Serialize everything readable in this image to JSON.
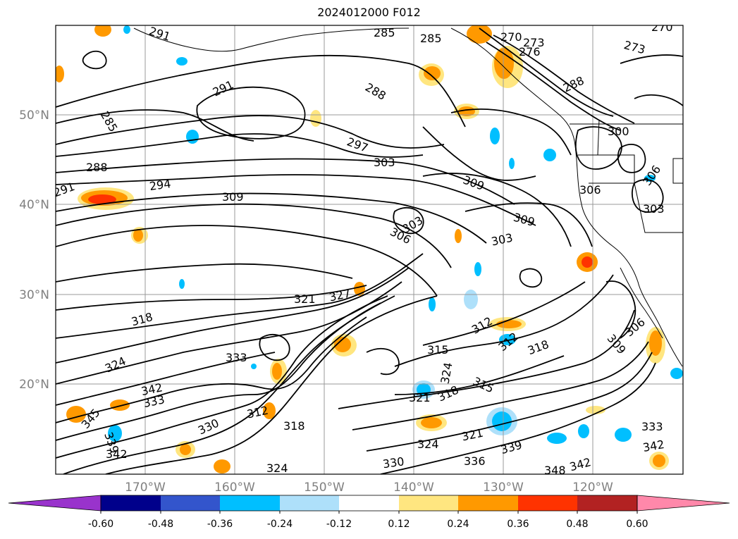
{
  "title": "2024012000 F012",
  "map": {
    "lat_labels": [
      "50°N",
      "40°N",
      "30°N",
      "20°N"
    ],
    "lon_labels": [
      "170°W",
      "160°W",
      "150°W",
      "140°W",
      "130°W",
      "120°W"
    ],
    "contour_labels": [
      {
        "text": "291"
      },
      {
        "text": "285"
      },
      {
        "text": "285"
      },
      {
        "text": "270"
      },
      {
        "text": "273"
      },
      {
        "text": "276"
      },
      {
        "text": "270"
      },
      {
        "text": "273"
      },
      {
        "text": "291"
      },
      {
        "text": "288"
      },
      {
        "text": "285"
      },
      {
        "text": "288"
      },
      {
        "text": "297"
      },
      {
        "text": "303"
      },
      {
        "text": "300"
      },
      {
        "text": "288"
      },
      {
        "text": "294"
      },
      {
        "text": "291"
      },
      {
        "text": "309"
      },
      {
        "text": "309"
      },
      {
        "text": "306"
      },
      {
        "text": "306"
      },
      {
        "text": "303"
      },
      {
        "text": "306"
      },
      {
        "text": "309"
      },
      {
        "text": "303"
      },
      {
        "text": "303"
      },
      {
        "text": "321"
      },
      {
        "text": "327"
      },
      {
        "text": "318"
      },
      {
        "text": "312"
      },
      {
        "text": "312"
      },
      {
        "text": "318"
      },
      {
        "text": "306"
      },
      {
        "text": "309"
      },
      {
        "text": "324"
      },
      {
        "text": "333"
      },
      {
        "text": "315"
      },
      {
        "text": "324"
      },
      {
        "text": "342"
      },
      {
        "text": "333"
      },
      {
        "text": "318"
      },
      {
        "text": "321"
      },
      {
        "text": "315"
      },
      {
        "text": "330"
      },
      {
        "text": "312"
      },
      {
        "text": "318"
      },
      {
        "text": "324"
      },
      {
        "text": "321"
      },
      {
        "text": "333"
      },
      {
        "text": "339"
      },
      {
        "text": "342"
      },
      {
        "text": "336"
      },
      {
        "text": "330"
      },
      {
        "text": "324"
      },
      {
        "text": "348"
      },
      {
        "text": "342"
      },
      {
        "text": "342"
      },
      {
        "text": "345"
      },
      {
        "text": "339"
      }
    ]
  },
  "colorbar": {
    "ticks": [
      "-0.60",
      "-0.48",
      "-0.36",
      "-0.24",
      "-0.12",
      "0.12",
      "0.24",
      "0.36",
      "0.48",
      "0.60"
    ],
    "colors": [
      "#9933cc",
      "#00008b",
      "#3355cc",
      "#00bfff",
      "#aee0fa",
      "#ffffff",
      "#ffe680",
      "#ff9900",
      "#ff3300",
      "#b22222",
      "#ff88aa",
      "#ff88aa"
    ]
  }
}
